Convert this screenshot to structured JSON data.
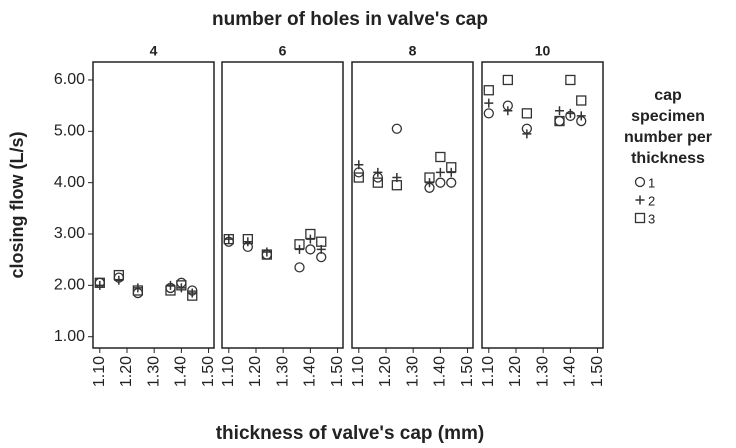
{
  "chart_data": {
    "type": "scatter",
    "title": "number of holes in valve's cap",
    "xlabel": "thickness of valve's cap (mm)",
    "ylabel": "closing flow (L/s)",
    "legend_title": [
      "cap",
      "specimen",
      "number per",
      "thickness"
    ],
    "xlim": [
      1.075,
      1.52
    ],
    "ylim": [
      0.78,
      6.35
    ],
    "xticks": [
      {
        "value": 1.1,
        "label": "1.10"
      },
      {
        "value": 1.2,
        "label": "1.20"
      },
      {
        "value": 1.3,
        "label": "1.30"
      },
      {
        "value": 1.4,
        "label": "1.40"
      },
      {
        "value": 1.5,
        "label": "1.50"
      }
    ],
    "yticks": [
      {
        "value": 1,
        "label": "1.00"
      },
      {
        "value": 2,
        "label": "2.00"
      },
      {
        "value": 3,
        "label": "3.00"
      },
      {
        "value": 4,
        "label": "4.00"
      },
      {
        "value": 5,
        "label": "5.00"
      },
      {
        "value": 6,
        "label": "6.00"
      }
    ],
    "color": "#333333",
    "series": [
      {
        "name": "1",
        "marker": "circle"
      },
      {
        "name": "2",
        "marker": "plus"
      },
      {
        "name": "3",
        "marker": "square"
      }
    ],
    "panels": [
      {
        "label": "4",
        "series": [
          {
            "x": [
              1.1,
              1.17,
              1.24,
              1.36,
              1.4,
              1.44
            ],
            "values": [
              2.05,
              2.15,
              1.85,
              1.95,
              2.05,
              1.9
            ]
          },
          {
            "x": [
              1.1,
              1.17,
              1.24,
              1.36,
              1.4,
              1.44
            ],
            "values": [
              2.0,
              2.1,
              1.95,
              2.0,
              1.95,
              1.85
            ]
          },
          {
            "x": [
              1.1,
              1.17,
              1.24,
              1.36,
              1.4,
              1.44
            ],
            "values": [
              2.05,
              2.2,
              1.9,
              1.9,
              2.0,
              1.8
            ]
          }
        ]
      },
      {
        "label": "6",
        "series": [
          {
            "x": [
              1.1,
              1.17,
              1.24,
              1.36,
              1.4,
              1.44
            ],
            "values": [
              2.85,
              2.75,
              2.6,
              2.35,
              2.7,
              2.55
            ]
          },
          {
            "x": [
              1.1,
              1.17,
              1.24,
              1.36,
              1.4,
              1.44
            ],
            "values": [
              2.9,
              2.85,
              2.65,
              2.7,
              2.9,
              2.7
            ]
          },
          {
            "x": [
              1.1,
              1.17,
              1.24,
              1.36,
              1.4,
              1.44
            ],
            "values": [
              2.9,
              2.9,
              2.6,
              2.8,
              3.0,
              2.85
            ]
          }
        ]
      },
      {
        "label": "8",
        "series": [
          {
            "x": [
              1.1,
              1.17,
              1.24,
              1.36,
              1.4,
              1.44
            ],
            "values": [
              4.2,
              4.1,
              5.05,
              3.9,
              4.0,
              4.0
            ]
          },
          {
            "x": [
              1.1,
              1.17,
              1.24,
              1.36,
              1.4,
              1.44
            ],
            "values": [
              4.35,
              4.2,
              4.1,
              4.0,
              4.2,
              4.2
            ]
          },
          {
            "x": [
              1.1,
              1.17,
              1.24,
              1.36,
              1.4,
              1.44
            ],
            "values": [
              4.1,
              4.0,
              3.95,
              4.1,
              4.5,
              4.3
            ]
          }
        ]
      },
      {
        "label": "10",
        "series": [
          {
            "x": [
              1.1,
              1.17,
              1.24,
              1.36,
              1.4,
              1.44
            ],
            "values": [
              5.35,
              5.5,
              5.05,
              5.2,
              5.3,
              5.2
            ]
          },
          {
            "x": [
              1.1,
              1.17,
              1.24,
              1.36,
              1.4,
              1.44
            ],
            "values": [
              5.55,
              5.4,
              4.95,
              5.4,
              5.35,
              5.3
            ]
          },
          {
            "x": [
              1.1,
              1.17,
              1.24,
              1.36,
              1.4,
              1.44
            ],
            "values": [
              5.8,
              6.0,
              5.35,
              5.2,
              6.0,
              5.6
            ]
          }
        ]
      }
    ]
  }
}
